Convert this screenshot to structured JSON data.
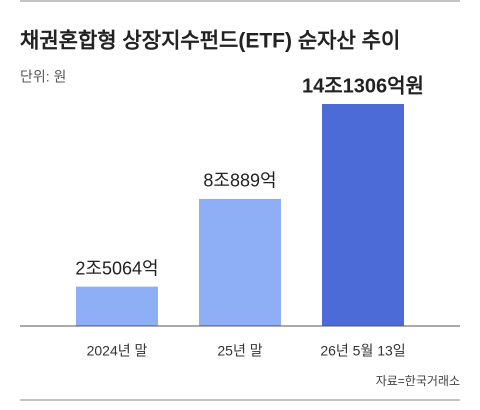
{
  "chart_data": {
    "type": "bar",
    "title": "채권혼합형 상장지수펀드(ETF) 순자산 추이",
    "subtitle": "단위: 원",
    "categories": [
      "2024년 말",
      "25년 말",
      "26년 5월 13일"
    ],
    "values": [
      25064,
      80889,
      141306
    ],
    "value_labels": [
      "2조5064억",
      "8조889억",
      "14조1306억원"
    ],
    "colors": [
      "#8eaef5",
      "#8eaef5",
      "#4d6bd6"
    ],
    "source": "자료=한국거래소"
  }
}
